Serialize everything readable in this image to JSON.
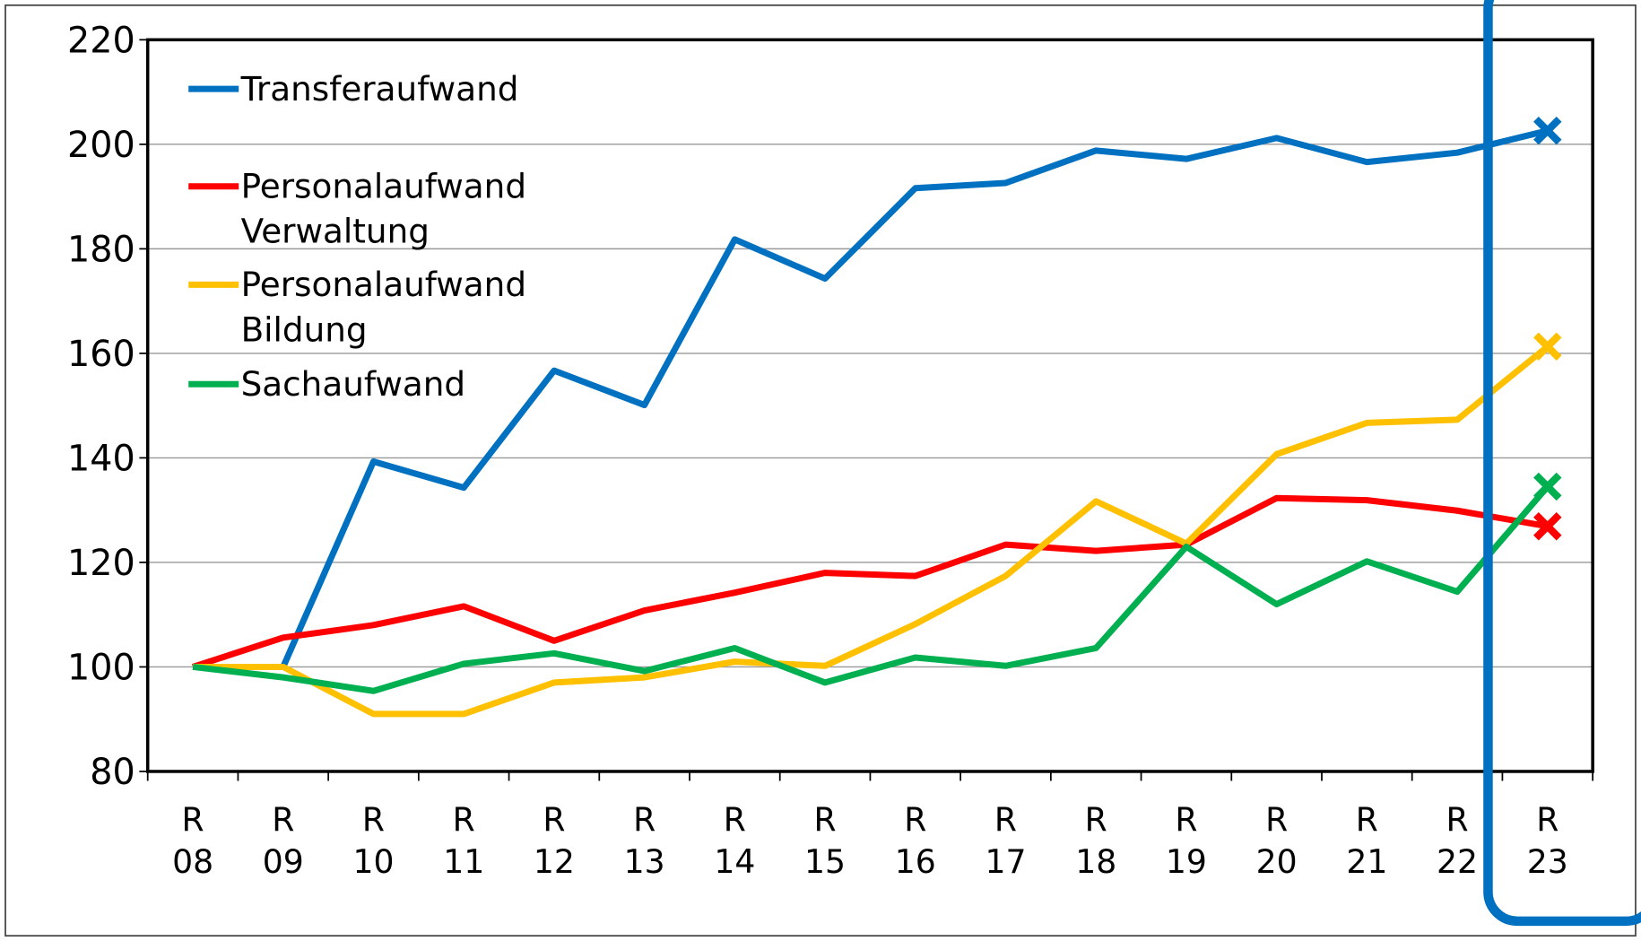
{
  "chart_data": {
    "type": "line",
    "categories": [
      "R 08",
      "R 09",
      "R 10",
      "R 11",
      "R 12",
      "R 13",
      "R 14",
      "R 15",
      "R 16",
      "R 17",
      "R 18",
      "R 19",
      "R 20",
      "R 21",
      "R 22",
      "R 23"
    ],
    "series": [
      {
        "name": "Transferaufwand",
        "color": "#0070c0",
        "values": [
          100,
          100,
          139.3,
          134.3,
          156.7,
          150.1,
          181.8,
          174.3,
          191.6,
          192.6,
          198.8,
          197.2,
          201.2,
          196.6,
          198.4,
          202.6
        ]
      },
      {
        "name": "Personalaufwand Verwaltung",
        "color": "#ff0000",
        "values": [
          100,
          105.6,
          108,
          111.6,
          105,
          110.8,
          114.2,
          118,
          117.4,
          123.4,
          122.2,
          123.4,
          132.3,
          131.9,
          129.9,
          126.9
        ]
      },
      {
        "name": "Personalaufwand Bildung",
        "color": "#ffc000",
        "values": [
          100,
          100,
          91,
          91,
          97,
          98,
          101,
          100.2,
          108.2,
          117.4,
          131.7,
          123.6,
          140.7,
          146.7,
          147.3,
          161.3
        ]
      },
      {
        "name": "Sachaufwand",
        "color": "#00b050",
        "values": [
          100,
          98,
          95.4,
          100.6,
          102.6,
          99.2,
          103.6,
          97,
          101.8,
          100.2,
          103.6,
          123,
          112,
          120.2,
          114.4,
          134.5
        ]
      }
    ],
    "ylim": [
      80,
      220
    ],
    "yticks": [
      80,
      100,
      120,
      140,
      160,
      180,
      200,
      220
    ],
    "grid": true,
    "legend": "upper left"
  }
}
